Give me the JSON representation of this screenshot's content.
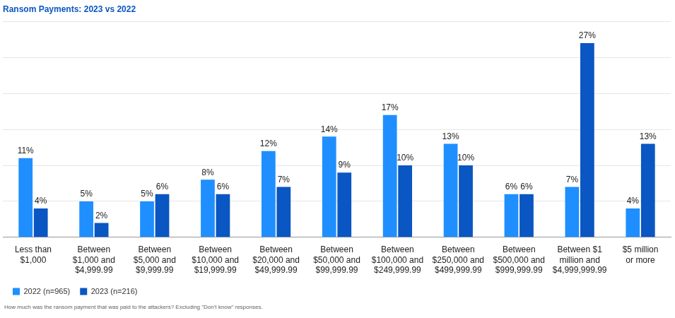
{
  "chart_data": {
    "type": "bar",
    "title": "Ransom Payments: 2023 vs 2022",
    "footnote": "How much was the ransom payment that was paid to the attackers? Excluding \"Don't know\" responses.",
    "categories": [
      "Less than $1,000",
      "Between $1,000 and $4,999.99",
      "Between $5,000 and $9,999.99",
      "Between $10,000 and $19,999.99",
      "Between $20,000 and $49,999.99",
      "Between $50,000 and $99,999.99",
      "Between $100,000 and $249,999.99",
      "Between $250,000 and $499,999.99",
      "Between $500,000 and $999,999.99",
      "Between $1 million and $4,999,999.99",
      "$5 million or more"
    ],
    "series": [
      {
        "name": "2022 (n=965)",
        "color": "#1f8fff",
        "values": [
          11,
          5,
          5,
          8,
          12,
          14,
          17,
          13,
          6,
          7,
          4
        ],
        "value_labels": [
          "11%",
          "5%",
          "5%",
          "8%",
          "12%",
          "14%",
          "17%",
          "13%",
          "6%",
          "7%",
          "4%"
        ]
      },
      {
        "name": "2023 (n=216)",
        "color": "#0a56c2",
        "values": [
          4,
          2,
          6,
          6,
          7,
          9,
          10,
          10,
          6,
          27,
          13
        ],
        "value_labels": [
          "4%",
          "2%",
          "6%",
          "6%",
          "7%",
          "9%",
          "10%",
          "10%",
          "6%",
          "27%",
          "13%"
        ]
      }
    ],
    "ylim": [
      0,
      30
    ],
    "yticks": [
      0,
      5,
      10,
      15,
      20,
      25,
      30
    ],
    "grid": true,
    "legend": "bottom-left",
    "data_labels": true,
    "tick_labels": "x"
  }
}
